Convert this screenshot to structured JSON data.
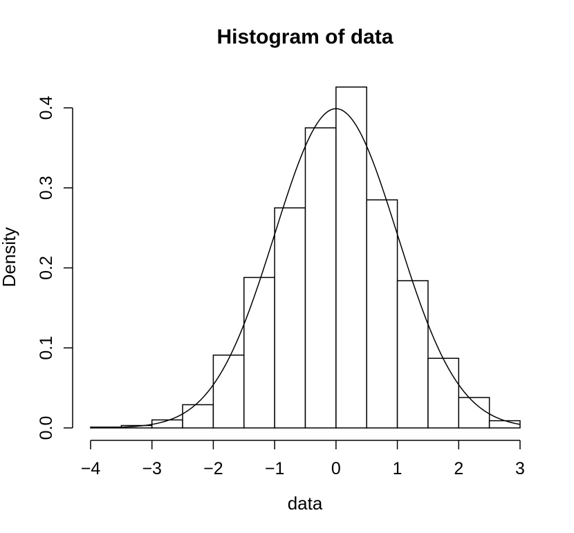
{
  "chart_data": {
    "type": "bar",
    "title": "Histogram of data",
    "xlabel": "data",
    "ylabel": "Density",
    "xlim": [
      -4,
      3
    ],
    "ylim": [
      0,
      0.4
    ],
    "x_ticks": [
      -4,
      -3,
      -2,
      -1,
      0,
      1,
      2,
      3
    ],
    "x_tick_labels": [
      "−4",
      "−3",
      "−2",
      "−1",
      "0",
      "1",
      "2",
      "3"
    ],
    "y_ticks": [
      0.0,
      0.1,
      0.2,
      0.3,
      0.4
    ],
    "y_tick_labels": [
      "0.0",
      "0.1",
      "0.2",
      "0.3",
      "0.4"
    ],
    "bins": [
      {
        "x0": -4.0,
        "x1": -3.5,
        "density": 0.001
      },
      {
        "x0": -3.5,
        "x1": -3.0,
        "density": 0.003
      },
      {
        "x0": -3.0,
        "x1": -2.5,
        "density": 0.01
      },
      {
        "x0": -2.5,
        "x1": -2.0,
        "density": 0.029
      },
      {
        "x0": -2.0,
        "x1": -1.5,
        "density": 0.091
      },
      {
        "x0": -1.5,
        "x1": -1.0,
        "density": 0.188
      },
      {
        "x0": -1.0,
        "x1": -0.5,
        "density": 0.275
      },
      {
        "x0": -0.5,
        "x1": 0.0,
        "density": 0.375
      },
      {
        "x0": 0.0,
        "x1": 0.5,
        "density": 0.426
      },
      {
        "x0": 0.5,
        "x1": 1.0,
        "density": 0.285
      },
      {
        "x0": 1.0,
        "x1": 1.5,
        "density": 0.184
      },
      {
        "x0": 1.5,
        "x1": 2.0,
        "density": 0.087
      },
      {
        "x0": 2.0,
        "x1": 2.5,
        "density": 0.038
      },
      {
        "x0": 2.5,
        "x1": 3.0,
        "density": 0.009
      }
    ],
    "overlay_curve": {
      "type": "line",
      "x_range": [
        -4,
        3
      ],
      "distribution": "normal",
      "mean": 0,
      "sd": 1
    },
    "grid": false,
    "legend": "none"
  }
}
